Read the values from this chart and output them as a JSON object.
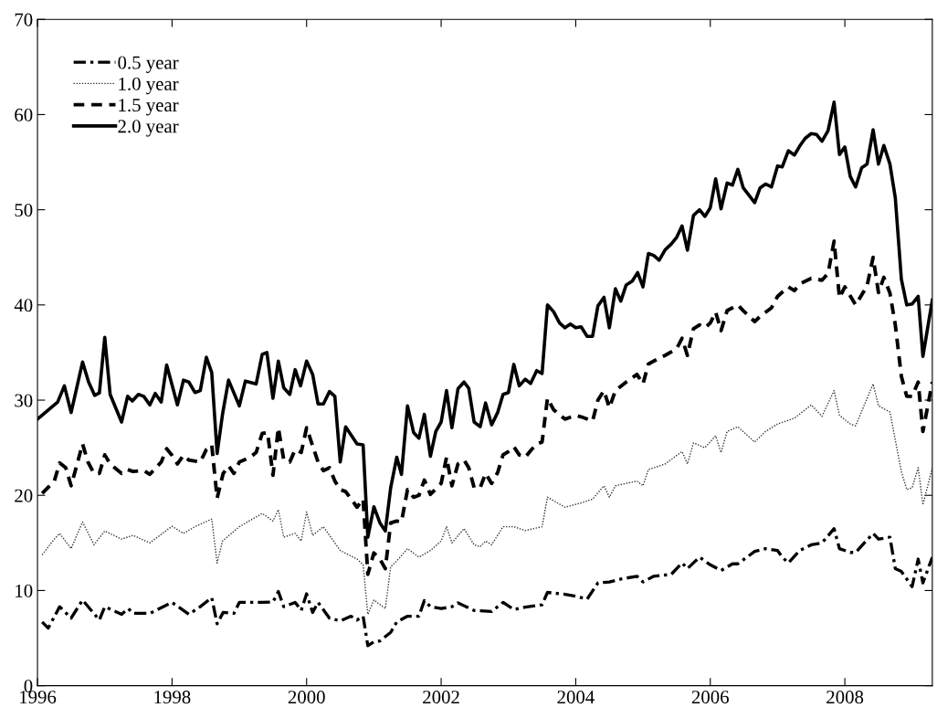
{
  "chart_data": {
    "type": "line",
    "xlim": [
      1996,
      2009.3
    ],
    "ylim": [
      0,
      70
    ],
    "xticks": [
      1996,
      1998,
      2000,
      2002,
      2004,
      2006,
      2008
    ],
    "yticks": [
      0,
      10,
      20,
      30,
      40,
      50,
      60,
      70
    ],
    "grid": false,
    "legend": "top left",
    "marker": "none",
    "series": [
      {
        "name": "0.5 year",
        "color": "#000000",
        "line_style": "dashdot",
        "x": [
          1996.07,
          1996.16,
          1996.33,
          1996.5,
          1996.67,
          1996.92,
          1997.0,
          1997.25,
          1997.35,
          1997.42,
          1997.67,
          1998.0,
          1998.25,
          1998.42,
          1998.59,
          1998.67,
          1998.76,
          1998.92,
          1999.0,
          1999.16,
          1999.34,
          1999.5,
          1999.58,
          1999.66,
          1999.83,
          1999.92,
          2000.0,
          2000.09,
          2000.17,
          2000.34,
          2000.5,
          2000.66,
          2000.75,
          2000.84,
          2000.91,
          2001.0,
          2001.09,
          2001.25,
          2001.34,
          2001.5,
          2001.67,
          2001.75,
          2001.84,
          2002.0,
          2002.16,
          2002.25,
          2002.49,
          2002.75,
          2002.92,
          2003.08,
          2003.25,
          2003.5,
          2003.58,
          2003.84,
          2004.0,
          2004.17,
          2004.33,
          2004.5,
          2004.67,
          2004.91,
          2005.0,
          2005.16,
          2005.42,
          2005.58,
          2005.66,
          2005.84,
          2006.0,
          2006.16,
          2006.33,
          2006.41,
          2006.66,
          2006.82,
          2007.0,
          2007.07,
          2007.16,
          2007.33,
          2007.5,
          2007.66,
          2007.84,
          2007.92,
          2008.08,
          2008.16,
          2008.42,
          2008.5,
          2008.67,
          2008.75,
          2008.84,
          2009.0,
          2009.09,
          2009.16,
          2009.3
        ],
        "values": [
          6.7,
          6.05,
          8.3,
          7.1,
          9.0,
          6.9,
          8.3,
          7.5,
          8.1,
          7.6,
          7.6,
          8.75,
          7.5,
          8.3,
          9.25,
          6.5,
          7.7,
          7.6,
          8.75,
          8.75,
          8.75,
          8.8,
          9.9,
          8.3,
          8.75,
          7.9,
          9.65,
          7.7,
          8.75,
          7.1,
          6.8,
          7.3,
          6.9,
          7.3,
          4.2,
          4.6,
          4.7,
          5.6,
          6.7,
          7.3,
          7.3,
          8.95,
          8.3,
          8.1,
          8.3,
          8.7,
          7.9,
          7.8,
          8.75,
          8.0,
          8.25,
          8.5,
          9.8,
          9.6,
          9.4,
          9.1,
          10.8,
          10.9,
          11.2,
          11.5,
          10.9,
          11.5,
          11.7,
          12.9,
          12.3,
          13.5,
          12.7,
          12.1,
          12.8,
          12.8,
          14.1,
          14.4,
          14.2,
          13.5,
          12.9,
          14.2,
          14.8,
          15.0,
          16.5,
          14.4,
          14.0,
          14.0,
          16.0,
          15.4,
          15.6,
          12.3,
          12.0,
          10.4,
          13.3,
          10.8,
          13.5
        ]
      },
      {
        "name": "1.0 year",
        "color": "#333333",
        "line_style": "dotted",
        "x": [
          1996.07,
          1996.25,
          1996.33,
          1996.5,
          1996.67,
          1996.84,
          1997.0,
          1997.25,
          1997.42,
          1997.67,
          1998.0,
          1998.17,
          1998.34,
          1998.59,
          1998.67,
          1998.75,
          1999.0,
          1999.34,
          1999.5,
          1999.58,
          1999.66,
          1999.83,
          1999.92,
          2000.0,
          2000.09,
          2000.25,
          2000.5,
          2000.75,
          2000.84,
          2000.91,
          2001.0,
          2001.17,
          2001.25,
          2001.34,
          2001.5,
          2001.67,
          2001.84,
          2002.0,
          2002.08,
          2002.16,
          2002.34,
          2002.49,
          2002.58,
          2002.66,
          2002.75,
          2002.92,
          2003.08,
          2003.25,
          2003.5,
          2003.58,
          2003.84,
          2004.08,
          2004.25,
          2004.42,
          2004.5,
          2004.59,
          2004.91,
          2005.0,
          2005.08,
          2005.33,
          2005.58,
          2005.66,
          2005.75,
          2005.92,
          2006.08,
          2006.16,
          2006.25,
          2006.41,
          2006.66,
          2006.82,
          2007.0,
          2007.25,
          2007.5,
          2007.66,
          2007.84,
          2007.92,
          2008.08,
          2008.16,
          2008.42,
          2008.5,
          2008.67,
          2008.75,
          2008.84,
          2008.92,
          2009.0,
          2009.09,
          2009.16,
          2009.3
        ],
        "values": [
          13.75,
          15.4,
          16.0,
          14.4,
          17.2,
          14.8,
          16.25,
          15.4,
          15.8,
          15.0,
          16.75,
          16.0,
          16.7,
          17.5,
          12.9,
          15.2,
          16.7,
          18.1,
          17.3,
          18.5,
          15.6,
          16.0,
          15.2,
          18.25,
          15.8,
          16.7,
          14.2,
          13.3,
          12.7,
          7.5,
          9.0,
          8.1,
          12.5,
          13.1,
          14.4,
          13.5,
          14.2,
          15.2,
          16.7,
          15.0,
          16.5,
          14.8,
          14.6,
          15.2,
          14.8,
          16.7,
          16.7,
          16.3,
          16.7,
          19.8,
          18.75,
          19.2,
          19.6,
          21.0,
          19.8,
          21.0,
          21.5,
          21.0,
          22.7,
          23.3,
          24.6,
          23.3,
          25.5,
          25.0,
          26.25,
          24.5,
          26.7,
          27.2,
          25.6,
          26.7,
          27.5,
          28.1,
          29.5,
          28.3,
          31.0,
          28.4,
          27.5,
          27.3,
          31.7,
          29.4,
          28.75,
          25.8,
          22.5,
          20.6,
          20.8,
          22.9,
          19.0,
          22.9
        ]
      },
      {
        "name": "1.5 year",
        "color": "#000000",
        "line_style": "dashed",
        "x": [
          1996.07,
          1996.25,
          1996.33,
          1996.42,
          1996.5,
          1996.59,
          1996.67,
          1996.75,
          1996.84,
          1996.92,
          1997.0,
          1997.08,
          1997.25,
          1997.34,
          1997.42,
          1997.58,
          1997.67,
          1997.84,
          1997.92,
          1998.0,
          1998.08,
          1998.17,
          1998.25,
          1998.42,
          1998.51,
          1998.59,
          1998.67,
          1998.76,
          1998.84,
          1998.92,
          1999.0,
          1999.16,
          1999.25,
          1999.34,
          1999.42,
          1999.5,
          1999.58,
          1999.66,
          1999.75,
          1999.83,
          1999.92,
          2000.0,
          2000.09,
          2000.17,
          2000.25,
          2000.34,
          2000.42,
          2000.5,
          2000.58,
          2000.75,
          2000.84,
          2000.91,
          2001.0,
          2001.09,
          2001.17,
          2001.25,
          2001.34,
          2001.41,
          2001.5,
          2001.59,
          2001.67,
          2001.75,
          2001.84,
          2002.0,
          2002.08,
          2002.16,
          2002.25,
          2002.34,
          2002.41,
          2002.49,
          2002.58,
          2002.66,
          2002.75,
          2002.84,
          2002.92,
          2003.0,
          2003.08,
          2003.16,
          2003.25,
          2003.33,
          2003.42,
          2003.5,
          2003.58,
          2003.67,
          2003.84,
          2004.0,
          2004.08,
          2004.25,
          2004.33,
          2004.42,
          2004.5,
          2004.59,
          2004.75,
          2004.91,
          2005.0,
          2005.08,
          2005.16,
          2005.33,
          2005.5,
          2005.58,
          2005.66,
          2005.75,
          2005.84,
          2005.92,
          2006.0,
          2006.08,
          2006.16,
          2006.25,
          2006.41,
          2006.49,
          2006.66,
          2006.74,
          2006.91,
          2007.0,
          2007.16,
          2007.25,
          2007.33,
          2007.5,
          2007.66,
          2007.75,
          2007.84,
          2007.92,
          2008.0,
          2008.16,
          2008.33,
          2008.42,
          2008.5,
          2008.58,
          2008.67,
          2008.75,
          2008.84,
          2008.92,
          2009.0,
          2009.09,
          2009.16,
          2009.3
        ],
        "values": [
          20.2,
          21.5,
          23.4,
          22.9,
          21.0,
          23.3,
          25.4,
          23.5,
          22.3,
          22.3,
          24.25,
          23.3,
          22.3,
          22.7,
          22.5,
          22.6,
          22.2,
          23.5,
          24.9,
          24.2,
          23.3,
          24.2,
          23.7,
          23.5,
          24.8,
          25.3,
          19.7,
          22.3,
          23.1,
          22.3,
          23.5,
          24.0,
          24.5,
          26.5,
          26.6,
          22.1,
          27.1,
          23.75,
          23.5,
          24.8,
          24.5,
          27.1,
          25.2,
          23.5,
          22.6,
          22.9,
          21.5,
          20.6,
          20.4,
          18.75,
          19.6,
          11.7,
          13.95,
          13.3,
          12.3,
          17.1,
          17.3,
          17.2,
          20.6,
          19.8,
          20.0,
          21.6,
          20.1,
          21.25,
          24.0,
          21.0,
          23.3,
          23.7,
          22.9,
          20.8,
          20.8,
          22.3,
          21.25,
          22.4,
          24.25,
          24.6,
          25.1,
          24.25,
          24.0,
          24.7,
          25.4,
          25.6,
          30.2,
          29.0,
          28.0,
          28.4,
          28.25,
          27.8,
          30.0,
          31.0,
          29.2,
          31.0,
          31.9,
          32.7,
          31.7,
          33.8,
          34.1,
          34.7,
          35.4,
          36.5,
          34.7,
          37.5,
          37.9,
          37.6,
          38.1,
          39.25,
          37.3,
          39.4,
          40.0,
          39.4,
          38.25,
          38.8,
          39.7,
          40.9,
          41.9,
          41.5,
          42.2,
          42.8,
          42.6,
          43.3,
          46.7,
          40.75,
          41.9,
          40.0,
          42.0,
          45.0,
          41.3,
          42.9,
          41.25,
          37.9,
          32.5,
          30.4,
          30.4,
          31.9,
          26.7,
          31.9
        ]
      },
      {
        "name": "2.0 year",
        "color": "#000000",
        "line_style": "solid",
        "x": [
          1996.0,
          1996.3,
          1996.4,
          1996.5,
          1996.67,
          1996.76,
          1996.85,
          1996.92,
          1997.0,
          1997.08,
          1997.25,
          1997.34,
          1997.41,
          1997.5,
          1997.58,
          1997.67,
          1997.75,
          1997.84,
          1997.92,
          1998.08,
          1998.17,
          1998.25,
          1998.34,
          1998.42,
          1998.51,
          1998.59,
          1998.67,
          1998.75,
          1998.84,
          1999.0,
          1999.09,
          1999.25,
          1999.34,
          1999.41,
          1999.5,
          1999.58,
          1999.66,
          1999.75,
          1999.83,
          1999.91,
          2000.0,
          2000.09,
          2000.17,
          2000.25,
          2000.34,
          2000.42,
          2000.5,
          2000.58,
          2000.75,
          2000.84,
          2000.91,
          2001.0,
          2001.09,
          2001.17,
          2001.25,
          2001.34,
          2001.41,
          2001.5,
          2001.59,
          2001.67,
          2001.75,
          2001.84,
          2001.92,
          2002.0,
          2002.08,
          2002.16,
          2002.25,
          2002.34,
          2002.41,
          2002.49,
          2002.58,
          2002.66,
          2002.75,
          2002.84,
          2002.92,
          2003.0,
          2003.08,
          2003.16,
          2003.25,
          2003.33,
          2003.42,
          2003.5,
          2003.58,
          2003.67,
          2003.76,
          2003.84,
          2003.92,
          2004.0,
          2004.08,
          2004.17,
          2004.25,
          2004.33,
          2004.42,
          2004.5,
          2004.59,
          2004.67,
          2004.75,
          2004.84,
          2004.92,
          2005.0,
          2005.08,
          2005.16,
          2005.24,
          2005.33,
          2005.42,
          2005.5,
          2005.58,
          2005.66,
          2005.75,
          2005.84,
          2005.92,
          2006.0,
          2006.08,
          2006.16,
          2006.25,
          2006.33,
          2006.41,
          2006.49,
          2006.66,
          2006.74,
          2006.82,
          2006.91,
          2007.0,
          2007.07,
          2007.16,
          2007.25,
          2007.33,
          2007.41,
          2007.5,
          2007.58,
          2007.66,
          2007.75,
          2007.84,
          2007.92,
          2008.0,
          2008.08,
          2008.16,
          2008.25,
          2008.33,
          2008.42,
          2008.5,
          2008.58,
          2008.67,
          2008.75,
          2008.84,
          2008.92,
          2009.0,
          2009.09,
          2009.16,
          2009.3
        ],
        "values": [
          28.0,
          29.8,
          31.5,
          28.7,
          34.0,
          31.9,
          30.5,
          30.75,
          36.6,
          30.6,
          27.7,
          30.4,
          29.9,
          30.6,
          30.4,
          29.5,
          30.7,
          29.8,
          33.7,
          29.5,
          32.1,
          31.9,
          30.8,
          31.0,
          34.5,
          32.9,
          24.4,
          28.5,
          32.1,
          29.4,
          32.0,
          31.7,
          34.8,
          35.0,
          30.2,
          34.1,
          31.3,
          30.6,
          33.2,
          31.5,
          34.1,
          32.7,
          29.6,
          29.6,
          30.9,
          30.4,
          23.5,
          27.2,
          25.4,
          25.3,
          15.6,
          18.8,
          17.1,
          16.25,
          20.8,
          24.0,
          22.2,
          29.4,
          26.6,
          26.0,
          28.5,
          24.1,
          26.7,
          27.7,
          31.0,
          27.1,
          31.2,
          31.9,
          31.25,
          27.7,
          27.2,
          29.7,
          27.4,
          28.7,
          30.6,
          30.8,
          33.75,
          31.5,
          32.2,
          31.75,
          33.1,
          32.8,
          40.0,
          39.3,
          38.1,
          37.6,
          38.0,
          37.6,
          37.7,
          36.7,
          36.7,
          39.9,
          40.8,
          37.6,
          41.7,
          40.4,
          42.1,
          42.5,
          43.4,
          41.9,
          45.4,
          45.2,
          44.7,
          45.8,
          46.4,
          47.1,
          48.3,
          45.75,
          49.4,
          50.0,
          49.3,
          50.2,
          53.25,
          50.1,
          52.8,
          52.6,
          54.25,
          52.3,
          50.75,
          52.3,
          52.7,
          52.4,
          54.6,
          54.5,
          56.2,
          55.75,
          56.7,
          57.5,
          58.0,
          57.9,
          57.2,
          58.3,
          61.3,
          55.8,
          56.6,
          53.5,
          52.4,
          54.4,
          54.8,
          58.4,
          54.8,
          56.75,
          54.8,
          51.25,
          42.7,
          40.0,
          40.1,
          40.9,
          34.6,
          40.5
        ]
      }
    ]
  }
}
